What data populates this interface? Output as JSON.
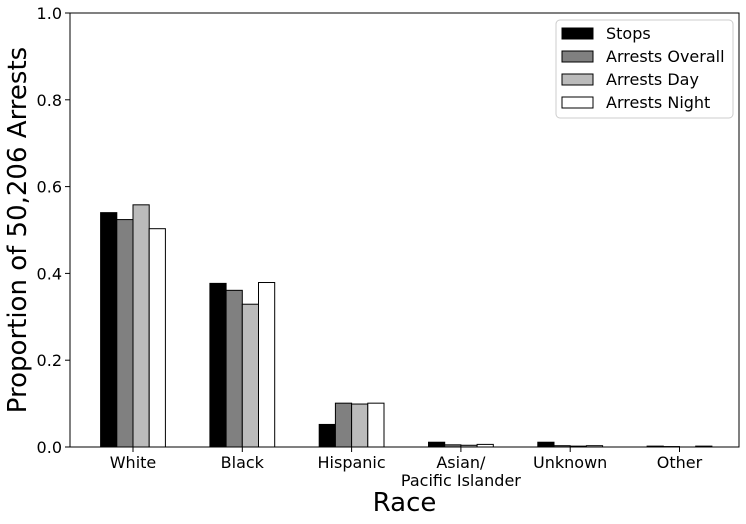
{
  "chart_data": {
    "type": "bar",
    "title": "",
    "xlabel": "Race",
    "ylabel": "Proportion of  50,206 Arrests",
    "categories": [
      [
        "White"
      ],
      [
        "Black"
      ],
      [
        "Hispanic"
      ],
      [
        "Asian/",
        "Pacific Islander"
      ],
      [
        "Unknown"
      ],
      [
        "Other"
      ]
    ],
    "series": [
      {
        "name": "Stops",
        "color": "#000000",
        "values": [
          0.54,
          0.377,
          0.052,
          0.011,
          0.011,
          0.002
        ]
      },
      {
        "name": "Arrests Overall",
        "color": "#808080",
        "values": [
          0.524,
          0.361,
          0.101,
          0.005,
          0.003,
          0.001
        ]
      },
      {
        "name": "Arrests Day",
        "color": "#bbbbbb",
        "values": [
          0.558,
          0.329,
          0.099,
          0.004,
          0.002,
          0.0
        ]
      },
      {
        "name": "Arrests Night",
        "color": "#ffffff",
        "values": [
          0.503,
          0.379,
          0.101,
          0.006,
          0.003,
          0.002
        ]
      }
    ],
    "ylim": [
      0,
      1.0
    ],
    "yticks": [
      0.0,
      0.2,
      0.4,
      0.6,
      0.8,
      1.0
    ],
    "ytick_labels": [
      "0.0",
      "0.2",
      "0.4",
      "0.6",
      "0.8",
      "1.0"
    ],
    "grid": false,
    "legend_position": "top-right"
  }
}
